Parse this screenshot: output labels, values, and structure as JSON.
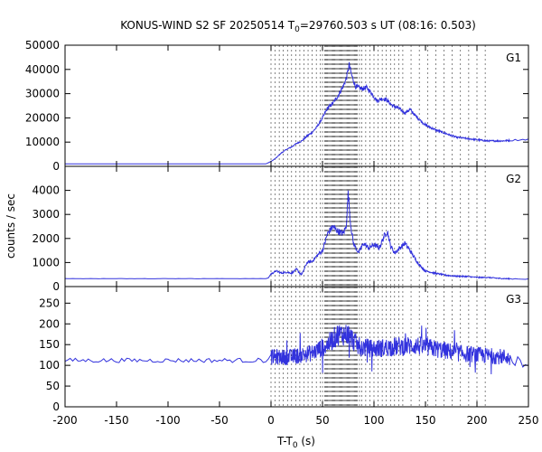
{
  "chart_data": {
    "type": "line",
    "title": "KONUS-WIND S2 SF 20250514 T",
    "title_sub": "0",
    "title_rest": "=29760.503 s UT (08:16: 0.503)",
    "xlabel": "T-T",
    "xlabel_sub": "0",
    "xlabel_unit": " (s)",
    "ylabel": "counts / sec",
    "xlim": [
      -200,
      250
    ],
    "x_ticks": [
      -200,
      -150,
      -100,
      -50,
      0,
      50,
      100,
      150,
      200,
      250
    ],
    "line_color": "#3232dd",
    "vlines": [
      0,
      4,
      8,
      12,
      16,
      20,
      24,
      28,
      32,
      36,
      40,
      44,
      48,
      50,
      52,
      53,
      54,
      55,
      56,
      57,
      58,
      59,
      60,
      61,
      62,
      63,
      64,
      65,
      66,
      67,
      68,
      69,
      70,
      71,
      72,
      73,
      74,
      75,
      76,
      77,
      78,
      79,
      80,
      81,
      82,
      83,
      84,
      86,
      88,
      92,
      96,
      100,
      104,
      108,
      112,
      116,
      120,
      124,
      128,
      136,
      144,
      152,
      160,
      168,
      176,
      184,
      192,
      200,
      208
    ],
    "panels": [
      {
        "name": "G1",
        "ylim": [
          0,
          50000
        ],
        "y_ticks": [
          0,
          10000,
          20000,
          30000,
          40000,
          50000
        ],
        "profile": [
          [
            -200,
            1000
          ],
          [
            -5,
            1000
          ],
          [
            0,
            2000
          ],
          [
            5,
            3500
          ],
          [
            10,
            5500
          ],
          [
            15,
            7000
          ],
          [
            20,
            8000
          ],
          [
            25,
            9500
          ],
          [
            30,
            10500
          ],
          [
            35,
            12500
          ],
          [
            40,
            14000
          ],
          [
            45,
            16500
          ],
          [
            50,
            20000
          ],
          [
            55,
            24000
          ],
          [
            60,
            26000
          ],
          [
            65,
            29000
          ],
          [
            70,
            33000
          ],
          [
            73,
            36000
          ],
          [
            76,
            42000
          ],
          [
            78,
            38000
          ],
          [
            82,
            33000
          ],
          [
            88,
            32000
          ],
          [
            93,
            32500
          ],
          [
            98,
            30000
          ],
          [
            103,
            27000
          ],
          [
            108,
            28000
          ],
          [
            112,
            27500
          ],
          [
            118,
            25000
          ],
          [
            124,
            24000
          ],
          [
            130,
            22000
          ],
          [
            135,
            23500
          ],
          [
            140,
            21000
          ],
          [
            150,
            17000
          ],
          [
            160,
            15000
          ],
          [
            170,
            13500
          ],
          [
            180,
            12000
          ],
          [
            190,
            11500
          ],
          [
            200,
            11000
          ],
          [
            210,
            10500
          ],
          [
            225,
            10500
          ],
          [
            235,
            10800
          ],
          [
            250,
            11200
          ]
        ],
        "noise": 0.03
      },
      {
        "name": "G2",
        "ylim": [
          0,
          5000
        ],
        "y_ticks": [
          0,
          1000,
          2000,
          3000,
          4000
        ],
        "profile": [
          [
            -200,
            330
          ],
          [
            -3,
            330
          ],
          [
            0,
            520
          ],
          [
            5,
            650
          ],
          [
            10,
            560
          ],
          [
            15,
            600
          ],
          [
            20,
            560
          ],
          [
            25,
            720
          ],
          [
            28,
            550
          ],
          [
            30,
            500
          ],
          [
            35,
            1000
          ],
          [
            40,
            1050
          ],
          [
            45,
            1300
          ],
          [
            50,
            1500
          ],
          [
            55,
            2200
          ],
          [
            60,
            2500
          ],
          [
            65,
            2300
          ],
          [
            70,
            2200
          ],
          [
            73,
            2500
          ],
          [
            75,
            3900
          ],
          [
            77,
            2700
          ],
          [
            80,
            1800
          ],
          [
            85,
            1400
          ],
          [
            90,
            1800
          ],
          [
            95,
            1600
          ],
          [
            100,
            1750
          ],
          [
            105,
            1600
          ],
          [
            110,
            2100
          ],
          [
            113,
            2300
          ],
          [
            116,
            1700
          ],
          [
            120,
            1400
          ],
          [
            125,
            1600
          ],
          [
            130,
            1800
          ],
          [
            135,
            1500
          ],
          [
            140,
            1150
          ],
          [
            145,
            850
          ],
          [
            150,
            650
          ],
          [
            160,
            550
          ],
          [
            170,
            470
          ],
          [
            180,
            430
          ],
          [
            190,
            420
          ],
          [
            200,
            380
          ],
          [
            210,
            380
          ],
          [
            225,
            330
          ],
          [
            250,
            310
          ]
        ],
        "noise": 0.06
      },
      {
        "name": "G3",
        "ylim": [
          0,
          290
        ],
        "y_ticks": [
          0,
          50,
          100,
          150,
          200,
          250
        ],
        "profile": [
          [
            -200,
            112
          ],
          [
            -3,
            112
          ],
          [
            0,
            120
          ],
          [
            20,
            120
          ],
          [
            40,
            130
          ],
          [
            55,
            150
          ],
          [
            65,
            175
          ],
          [
            75,
            175
          ],
          [
            85,
            145
          ],
          [
            100,
            140
          ],
          [
            120,
            145
          ],
          [
            140,
            148
          ],
          [
            160,
            140
          ],
          [
            180,
            130
          ],
          [
            200,
            125
          ],
          [
            230,
            120
          ],
          [
            232,
            112
          ],
          [
            250,
            112
          ]
        ],
        "noise": 0.16
      }
    ]
  }
}
